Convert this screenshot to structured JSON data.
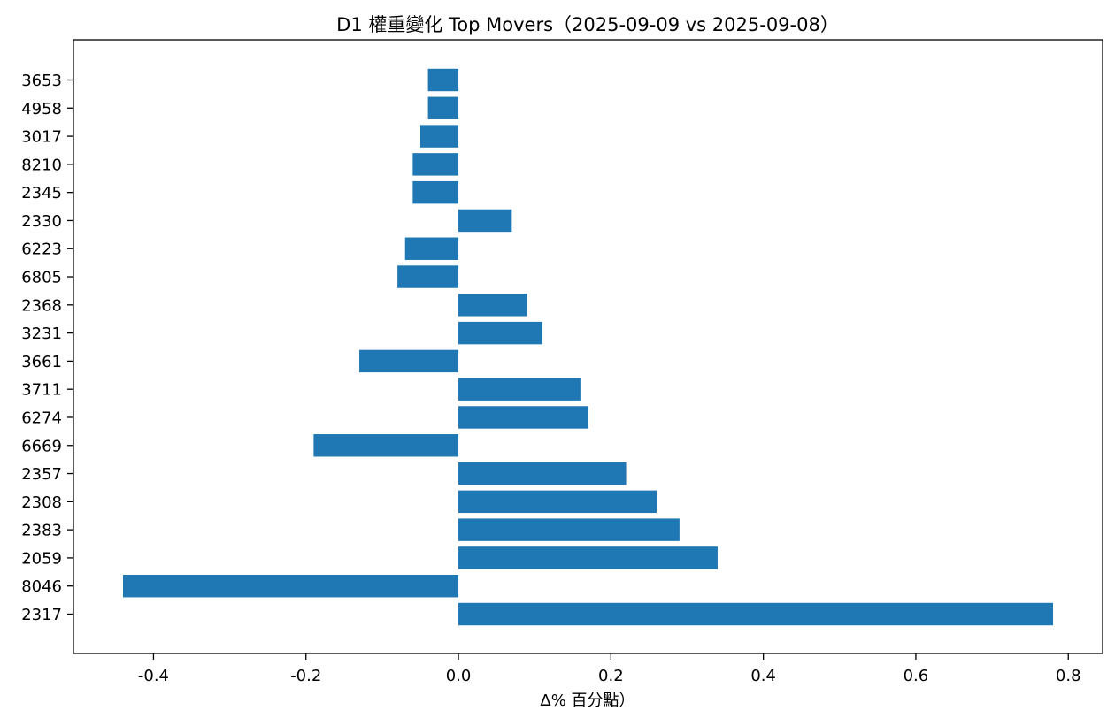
{
  "chart_data": {
    "type": "bar",
    "orientation": "horizontal",
    "title": "D1 權重變化 Top Movers（2025-09-09 vs 2025-09-08）",
    "xlabel": "Δ% 百分點）",
    "ylabel": "",
    "xlim": [
      -0.505,
      0.845
    ],
    "xticks": [
      -0.4,
      -0.2,
      0.0,
      0.2,
      0.4,
      0.6,
      0.8
    ],
    "xtick_labels": [
      "-0.4",
      "-0.2",
      "0.0",
      "0.2",
      "0.4",
      "0.6",
      "0.8"
    ],
    "grid": false,
    "legend": "none",
    "bar_color": "#1f77b4",
    "categories": [
      "2317",
      "8046",
      "2059",
      "2383",
      "2308",
      "2357",
      "6669",
      "6274",
      "3711",
      "3661",
      "3231",
      "2368",
      "6805",
      "6223",
      "2330",
      "2345",
      "8210",
      "3017",
      "4958",
      "3653"
    ],
    "values": [
      0.78,
      -0.44,
      0.34,
      0.29,
      0.26,
      0.22,
      -0.19,
      0.17,
      0.16,
      -0.13,
      0.11,
      0.09,
      -0.08,
      -0.07,
      0.07,
      -0.06,
      -0.06,
      -0.05,
      -0.04,
      -0.04
    ]
  }
}
